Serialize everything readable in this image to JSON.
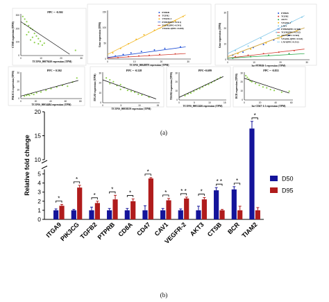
{
  "figure": {
    "label_a": "(a)",
    "label_b": "(b)"
  },
  "chart_data": [
    {
      "type": "scatter",
      "panel": "a1",
      "annotation": "PPC = -0.502",
      "xlabel": "TCONS_00079410 expression (TPM)",
      "ylabel": "CTSB expression (TPM)",
      "xticks": [
        "0",
        "10",
        "20",
        "30"
      ],
      "yticks": [
        "0",
        "100",
        "200",
        "300"
      ],
      "xlim": [
        0,
        32
      ],
      "ylim": [
        0,
        320
      ],
      "points": [
        [
          1,
          300
        ],
        [
          2,
          280
        ],
        [
          3,
          260
        ],
        [
          2,
          240
        ],
        [
          4,
          230
        ],
        [
          5,
          210
        ],
        [
          6,
          200
        ],
        [
          4,
          180
        ],
        [
          7,
          170
        ],
        [
          3,
          160
        ],
        [
          8,
          150
        ],
        [
          6,
          140
        ],
        [
          9,
          130
        ],
        [
          5,
          120
        ],
        [
          10,
          110
        ],
        [
          7,
          100
        ],
        [
          12,
          95
        ],
        [
          9,
          90
        ],
        [
          11,
          80
        ],
        [
          28,
          40
        ]
      ],
      "fit": [
        [
          0,
          260
        ],
        [
          25,
          10
        ]
      ]
    },
    {
      "type": "scatter",
      "panel": "a2",
      "xlabel": "TCONS_00048879 expression (TPM)",
      "ylabel": "Gene expression (TPM)",
      "xticks": [
        "0",
        "10",
        "20",
        "30"
      ],
      "yticks": [
        "0",
        "50",
        "100",
        "150"
      ],
      "xlim": [
        0,
        32
      ],
      "ylim": [
        0,
        160
      ],
      "series": [
        {
          "name": "PTPRB",
          "color": "#1f4fd6",
          "points": [
            [
              3,
              10
            ],
            [
              6,
              15
            ],
            [
              9,
              20
            ],
            [
              13,
              25
            ],
            [
              18,
              30
            ],
            [
              22,
              35
            ],
            [
              28,
              40
            ]
          ],
          "fit": [
            [
              0,
              5
            ],
            [
              30,
              40
            ]
          ]
        },
        {
          "name": "TGFB2",
          "color": "#d23a2e",
          "points": [
            [
              4,
              5
            ],
            [
              8,
              8
            ],
            [
              12,
              10
            ],
            [
              16,
              12
            ],
            [
              20,
              15
            ],
            [
              26,
              17
            ]
          ],
          "fit": [
            [
              0,
              3
            ],
            [
              30,
              18
            ]
          ]
        },
        {
          "name": "VEGFR-2",
          "color": "#f2b51c",
          "points": [
            [
              2,
              20
            ],
            [
              5,
              35
            ],
            [
              8,
              50
            ],
            [
              11,
              65
            ],
            [
              14,
              80
            ],
            [
              18,
              95
            ],
            [
              22,
              110
            ],
            [
              26,
              125
            ],
            [
              29,
              140
            ]
          ],
          "fit": [
            [
              0,
              15
            ],
            [
              30,
              145
            ]
          ]
        }
      ],
      "legend": [
        "PTPRB",
        "TGFB2",
        "VEGFR-2",
        "PTPRB(PPC=0.511)",
        "TGFB2(PPC=0.541)",
        "VEGFR-2(PPC=0.698)"
      ],
      "legend_colors": [
        "#1f4fd6",
        "#d23a2e",
        "#f2b51c",
        "#1f4fd6",
        "#d23a2e",
        "#f2b51c"
      ]
    },
    {
      "type": "scatter",
      "panel": "a3",
      "xlabel": "lnc-PTPRB-1 expression (TPM)",
      "ylabel": "Gene expression (TPM)",
      "xticks": [
        "0",
        "10",
        "20",
        "30"
      ],
      "yticks": [
        "0",
        "10",
        "20",
        "30"
      ],
      "xlim": [
        0,
        32
      ],
      "ylim": [
        0,
        32
      ],
      "series": [
        {
          "name": "PTPRB",
          "color": "#1f4fd6",
          "points": [
            [
              2,
              3
            ],
            [
              6,
              5
            ],
            [
              10,
              8
            ],
            [
              14,
              10
            ],
            [
              18,
              13
            ],
            [
              24,
              16
            ],
            [
              28,
              20
            ]
          ],
          "fit": [
            [
              0,
              2
            ],
            [
              30,
              21
            ]
          ]
        },
        {
          "name": "TGFB2",
          "color": "#d23a2e",
          "points": [
            [
              3,
              2
            ],
            [
              8,
              3
            ],
            [
              14,
              4
            ],
            [
              20,
              5
            ],
            [
              26,
              6
            ]
          ],
          "fit": [
            [
              0,
              1
            ],
            [
              30,
              7
            ]
          ]
        },
        {
          "name": "AKT3",
          "color": "#2ba84a",
          "points": [
            [
              2,
              1
            ],
            [
              9,
              2
            ],
            [
              16,
              3
            ],
            [
              24,
              4
            ]
          ],
          "fit": [
            [
              0,
              1
            ],
            [
              30,
              4
            ]
          ]
        },
        {
          "name": "VEGFR-2",
          "color": "#f2b51c",
          "points": [
            [
              4,
              4
            ],
            [
              9,
              7
            ],
            [
              15,
              11
            ],
            [
              21,
              15
            ],
            [
              27,
              19
            ]
          ],
          "fit": [
            [
              0,
              2
            ],
            [
              30,
              21
            ]
          ]
        },
        {
          "name": "CAV1",
          "color": "#7ec6e8",
          "points": [
            [
              3,
              6
            ],
            [
              8,
              9
            ],
            [
              13,
              14
            ],
            [
              19,
              18
            ],
            [
              25,
              25
            ],
            [
              29,
              28
            ]
          ],
          "fit": [
            [
              0,
              4
            ],
            [
              30,
              29
            ]
          ]
        }
      ],
      "legend": [
        "PTPRB",
        "TGFB2",
        "AKT3",
        "VEGFR-2",
        "CAV1",
        "PTPRB(PPC=0.564)",
        "TGFB2(PPC=0.512)",
        "AKT3(PPC=0.504)",
        "VEGFR-2(PPC=0.543)",
        "CAV1(PPC=0.512)"
      ],
      "legend_colors": [
        "#1f4fd6",
        "#d23a2e",
        "#2ba84a",
        "#f2b51c",
        "#7ec6e8",
        "#1f4fd6",
        "#d23a2e",
        "#2ba84a",
        "#f2b51c",
        "#7ec6e8"
      ]
    },
    {
      "type": "scatter",
      "panel": "a4",
      "annotation": "PPC = 0.502",
      "xlabel": "TCONS_00034484 expression (TPM)",
      "ylabel": "PIK3CG expression (TPM)",
      "xticks": [
        "0",
        "20",
        "40",
        "60",
        "80"
      ],
      "yticks": [
        "0",
        "10",
        "20",
        "30"
      ],
      "xlim": [
        0,
        85
      ],
      "ylim": [
        0,
        32
      ],
      "points": [
        [
          5,
          3
        ],
        [
          8,
          4
        ],
        [
          10,
          5
        ],
        [
          12,
          4
        ],
        [
          15,
          6
        ],
        [
          18,
          5
        ],
        [
          22,
          7
        ],
        [
          28,
          8
        ],
        [
          35,
          10
        ],
        [
          42,
          12
        ],
        [
          50,
          14
        ],
        [
          58,
          16
        ],
        [
          65,
          15
        ],
        [
          72,
          20
        ],
        [
          78,
          25
        ]
      ],
      "fit": [
        [
          0,
          3
        ],
        [
          80,
          22
        ]
      ]
    },
    {
      "type": "scatter",
      "panel": "a5",
      "annotation": "PPC = -0.528",
      "xlabel": "TCONS_00058159 expression (TPM)",
      "ylabel": "ITGA9 expression (TPM)",
      "xticks": [
        "0",
        "5",
        "10",
        "15"
      ],
      "yticks": [
        "0",
        "10",
        "20",
        "30"
      ],
      "xlim": [
        0,
        16
      ],
      "ylim": [
        0,
        32
      ],
      "points": [
        [
          1,
          26
        ],
        [
          2,
          24
        ],
        [
          3,
          22
        ],
        [
          2,
          20
        ],
        [
          4,
          18
        ],
        [
          5,
          19
        ],
        [
          6,
          16
        ],
        [
          5,
          14
        ],
        [
          7,
          13
        ],
        [
          8,
          12
        ],
        [
          9,
          11
        ],
        [
          10,
          9
        ],
        [
          11,
          8
        ],
        [
          13,
          6
        ]
      ],
      "fit": [
        [
          0,
          24
        ],
        [
          15,
          4
        ]
      ]
    },
    {
      "type": "scatter",
      "panel": "a6",
      "annotation": "PPC=0.699",
      "xlabel": "TCONS_00012426 expression (TPM)",
      "ylabel": "TIAM2 expression (TPM)",
      "xticks": [
        "0",
        "5",
        "10",
        "15"
      ],
      "yticks": [
        "0",
        "10",
        "20",
        "30"
      ],
      "xlim": [
        0,
        16
      ],
      "ylim": [
        0,
        32
      ],
      "points": [
        [
          2,
          5
        ],
        [
          3,
          7
        ],
        [
          4,
          8
        ],
        [
          5,
          10
        ],
        [
          6,
          12
        ],
        [
          7,
          13
        ],
        [
          8,
          15
        ],
        [
          9,
          17
        ],
        [
          10,
          18
        ],
        [
          11,
          20
        ],
        [
          12,
          22
        ],
        [
          13,
          24
        ],
        [
          14,
          26
        ]
      ],
      "fit": [
        [
          0,
          3
        ],
        [
          15,
          27
        ]
      ]
    },
    {
      "type": "scatter",
      "panel": "a7",
      "annotation": "PPC = -0.833",
      "xlabel": "lnc-CD47-1:1 expression (TPM)",
      "ylabel": "BCR expression (TPM)",
      "xticks": [
        "0",
        "20",
        "40",
        "60"
      ],
      "yticks": [
        "0",
        "10",
        "20",
        "30"
      ],
      "xlim": [
        0,
        65
      ],
      "ylim": [
        0,
        32
      ],
      "points": [
        [
          2,
          28
        ],
        [
          4,
          26
        ],
        [
          6,
          24
        ],
        [
          8,
          22
        ],
        [
          10,
          21
        ],
        [
          15,
          19
        ],
        [
          20,
          17
        ],
        [
          25,
          15
        ],
        [
          30,
          14
        ],
        [
          35,
          12
        ],
        [
          40,
          11
        ],
        [
          50,
          9
        ],
        [
          60,
          10
        ]
      ],
      "fit": [
        [
          0,
          25
        ],
        [
          60,
          8
        ]
      ]
    },
    {
      "type": "bar",
      "panel": "b",
      "ylabel": "Relative fold change",
      "categories": [
        "ITGA9",
        "PIK3CG",
        "TGFB2",
        "PTPRB",
        "CD8A",
        "CD47",
        "CAV1",
        "VEGFR-2",
        "AKT3",
        "CTSB",
        "BCR",
        "TIAM2"
      ],
      "series": [
        {
          "name": "D50",
          "color": "#14149a",
          "values": [
            1.0,
            1.0,
            1.0,
            1.0,
            1.0,
            1.0,
            1.0,
            1.0,
            1.0,
            3.2,
            3.3,
            16.5
          ],
          "errors": [
            0.15,
            0.1,
            0.35,
            0.2,
            0.2,
            0.5,
            0.2,
            0.15,
            0.45,
            0.3,
            0.3,
            1.5
          ]
        },
        {
          "name": "D95",
          "color": "#b01c1c",
          "values": [
            1.5,
            3.5,
            1.8,
            2.2,
            2.0,
            4.5,
            2.1,
            2.3,
            2.2,
            1.0,
            1.0,
            1.0
          ],
          "errors": [
            0.15,
            0.25,
            0.2,
            0.45,
            0.25,
            0.1,
            0.2,
            0.15,
            0.2,
            0.1,
            0.45,
            0.3
          ]
        }
      ],
      "significance": [
        "*",
        "*",
        "*",
        "*",
        "*",
        "*",
        "*",
        "* *",
        "*",
        "* *",
        "*",
        "*"
      ],
      "yticks": [
        "0",
        "1",
        "2",
        "3",
        "4",
        "5",
        "10",
        "15",
        "20"
      ],
      "ylim_lower": [
        0,
        5.5
      ],
      "ylim_upper": [
        10,
        20
      ],
      "legend_position": "right"
    }
  ]
}
